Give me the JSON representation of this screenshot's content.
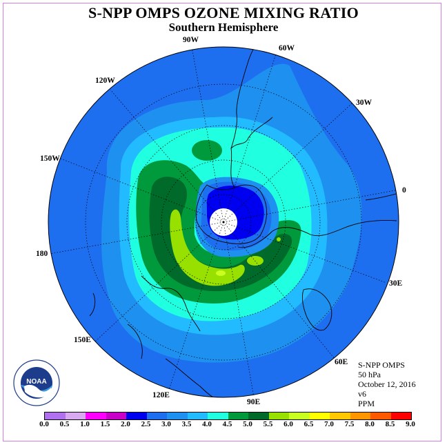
{
  "title": "S-NPP OMPS OZONE MIXING RATIO",
  "subtitle": "Southern Hemisphere",
  "info": {
    "instrument": "S-NPP OMPS",
    "level": "50 hPa",
    "date": "October 12, 2016",
    "version": "v6",
    "units": "PPM"
  },
  "longitude_labels": [
    "90W",
    "60W",
    "30W",
    "0",
    "30E",
    "60E",
    "90E",
    "120E",
    "150E",
    "180",
    "150W",
    "120W"
  ],
  "colorbar": {
    "ticks": [
      "0.0",
      "0.5",
      "1.0",
      "1.5",
      "2.0",
      "2.5",
      "3.0",
      "3.5",
      "4.0",
      "4.5",
      "5.0",
      "5.5",
      "6.0",
      "6.5",
      "7.0",
      "7.5",
      "8.0",
      "8.5",
      "9.0"
    ],
    "colors": [
      "#b070f0",
      "#d8a8f0",
      "#ff00ff",
      "#c800c8",
      "#0000f0",
      "#1e6ef0",
      "#1e90f0",
      "#22bbff",
      "#20ffe0",
      "#009a3c",
      "#006a2a",
      "#98e000",
      "#c8ff20",
      "#ffff00",
      "#ffc800",
      "#ff9600",
      "#ff5a00",
      "#ff0000",
      "#805030"
    ]
  },
  "logo": {
    "text": "NOAA",
    "ring_text": "NATIONAL OCEANIC AND ATMOSPHERIC ADMINISTRATION · U.S. DEPARTMENT OF COMMERCE"
  },
  "colors": {
    "background_field": "#1e6ef0",
    "pole_mask": "#ffffff"
  }
}
